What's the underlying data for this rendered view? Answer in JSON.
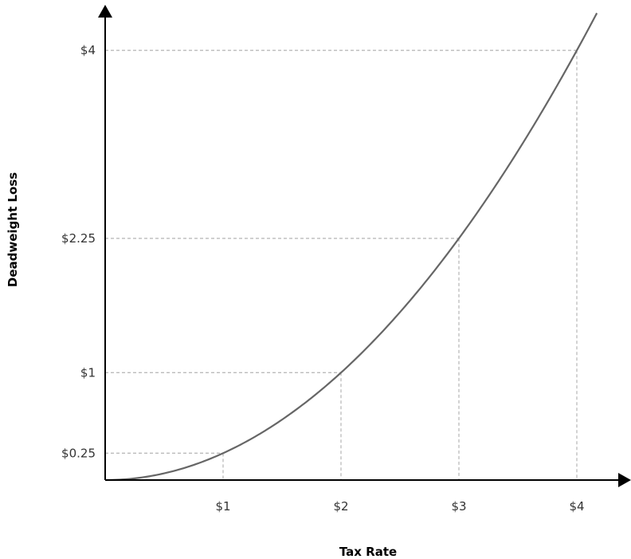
{
  "chart_data": {
    "type": "line",
    "title": "",
    "xlabel": "Tax Rate",
    "ylabel": "Deadweight Loss",
    "x_ticks": [
      "$1",
      "$2",
      "$3",
      "$4"
    ],
    "y_ticks": [
      "$0.25",
      "$1",
      "$2.25",
      "$4"
    ],
    "x_tick_values": [
      1,
      2,
      3,
      4
    ],
    "y_tick_values": [
      0.25,
      1,
      2.25,
      4
    ],
    "xlim": [
      0,
      4.35
    ],
    "ylim": [
      0,
      4.35
    ],
    "grid": false,
    "series": [
      {
        "function": "y = x^2 / 4",
        "x": [
          0,
          0.5,
          1,
          1.5,
          2,
          2.5,
          3,
          3.5,
          4,
          4.1,
          4.17
        ],
        "y": [
          0,
          0.0625,
          0.25,
          0.5625,
          1,
          1.5625,
          2.25,
          3.0625,
          4,
          4.2025,
          4.35
        ],
        "color": "#666666"
      }
    ],
    "reference_lines": [
      {
        "x": 1,
        "y": 0.25
      },
      {
        "x": 2,
        "y": 1
      },
      {
        "x": 3,
        "y": 2.25
      },
      {
        "x": 4,
        "y": 4
      }
    ],
    "colors": {
      "axis": "#000000",
      "curve": "#666666",
      "guide": "#bbbbbb",
      "text": "#333333"
    }
  }
}
